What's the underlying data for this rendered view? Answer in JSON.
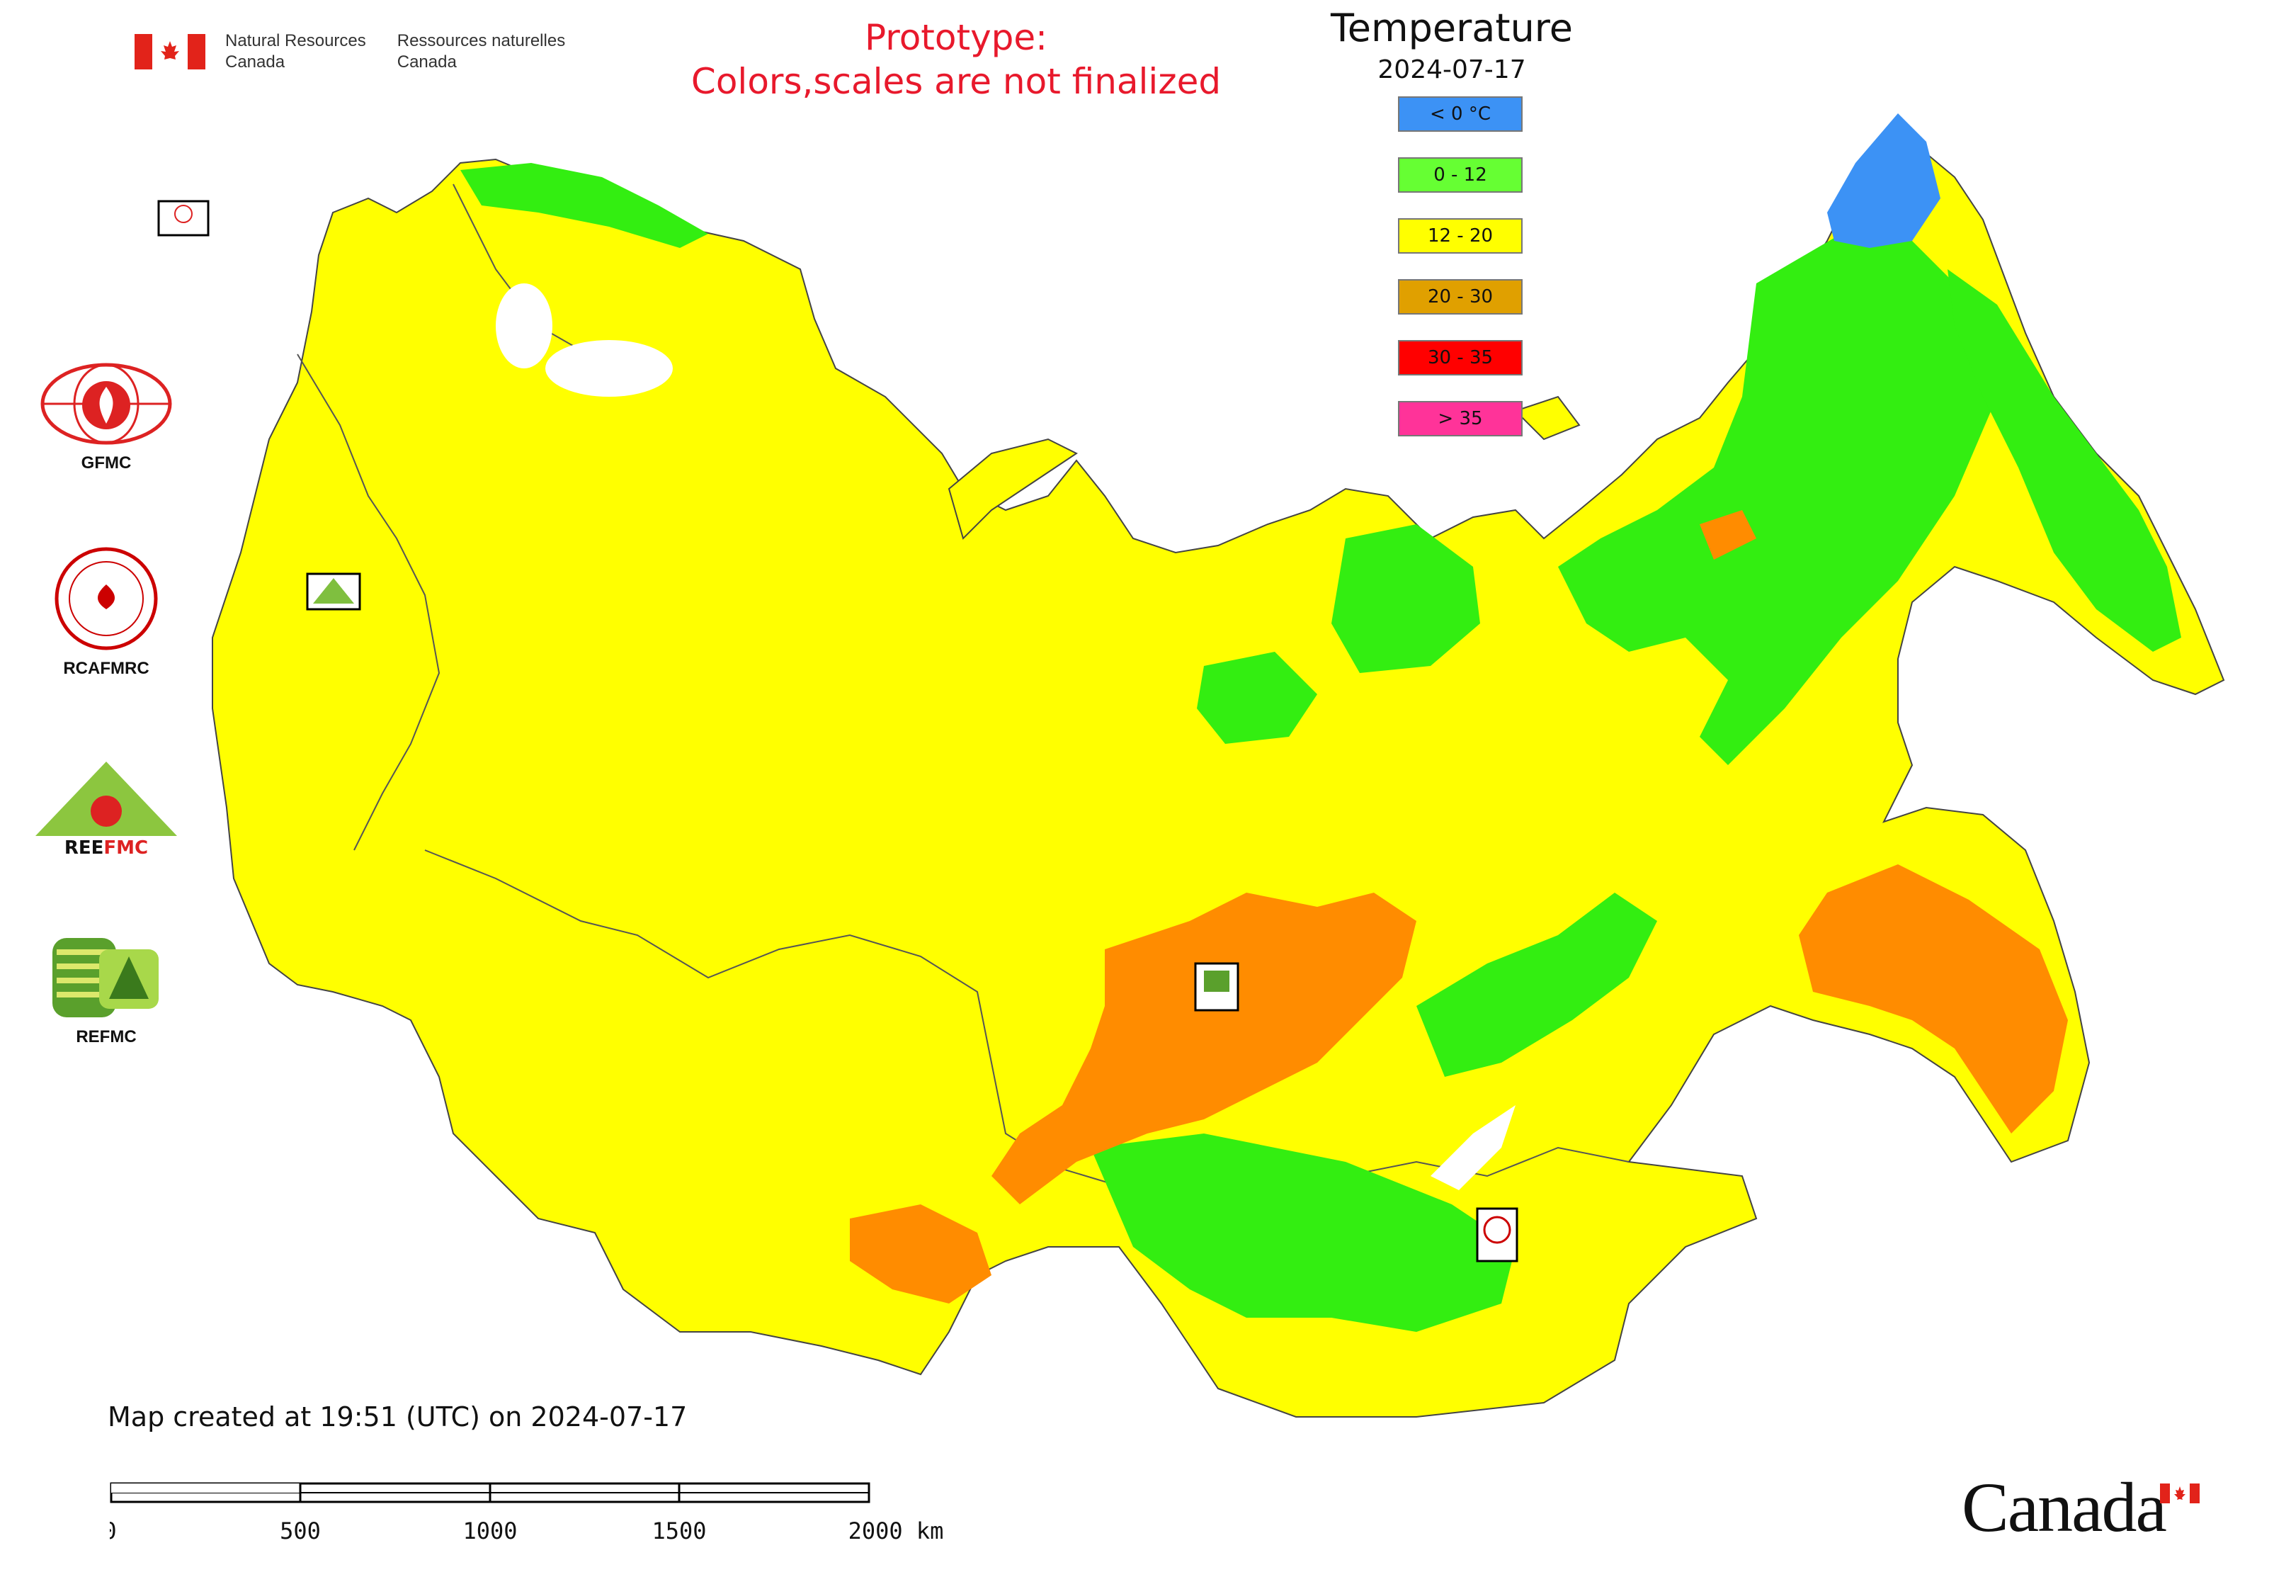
{
  "header": {
    "org_en_line1": "Natural Resources",
    "org_en_line2": "Canada",
    "org_fr_line1": "Ressources naturelles",
    "org_fr_line2": "Canada",
    "prototype_line1": "Prototype:",
    "prototype_line2": "Colors,scales are not finalized"
  },
  "legend": {
    "title": "Temperature",
    "date": "2024-07-17",
    "items": [
      {
        "label": "< 0 °C",
        "color": "#3c92f5"
      },
      {
        "label": "0 - 12",
        "color": "#66ff33"
      },
      {
        "label": "12 - 20",
        "color": "#ffff00"
      },
      {
        "label": "20 - 30",
        "color": "#e0a000"
      },
      {
        "label": "30 - 35",
        "color": "#ff0000"
      },
      {
        "label": "> 35",
        "color": "#ff3399"
      }
    ]
  },
  "logos": [
    {
      "name": "GFMC",
      "label": "GFMC"
    },
    {
      "name": "RCAFMRC",
      "label": "RCAFMRC"
    },
    {
      "name": "REEFMC",
      "label": ""
    },
    {
      "name": "REFMC",
      "label": "REFMC"
    }
  ],
  "map_markers": {
    "gfmc": "GFMC",
    "reefmc": "REEFMC",
    "refmc": "REFMC",
    "rcafmrc": "RCAFMRC"
  },
  "map_colors": {
    "land_base": "#ffff00",
    "cool": "#33ee11",
    "cold": "#3c92f5",
    "warm": "#ff8c00",
    "border": "#333333"
  },
  "footer": {
    "created": "Map created at 19:51 (UTC) on 2024-07-17",
    "scale_labels": [
      "0",
      "500",
      "1000",
      "1500",
      "2000 km"
    ]
  },
  "wordmark": "Canada"
}
